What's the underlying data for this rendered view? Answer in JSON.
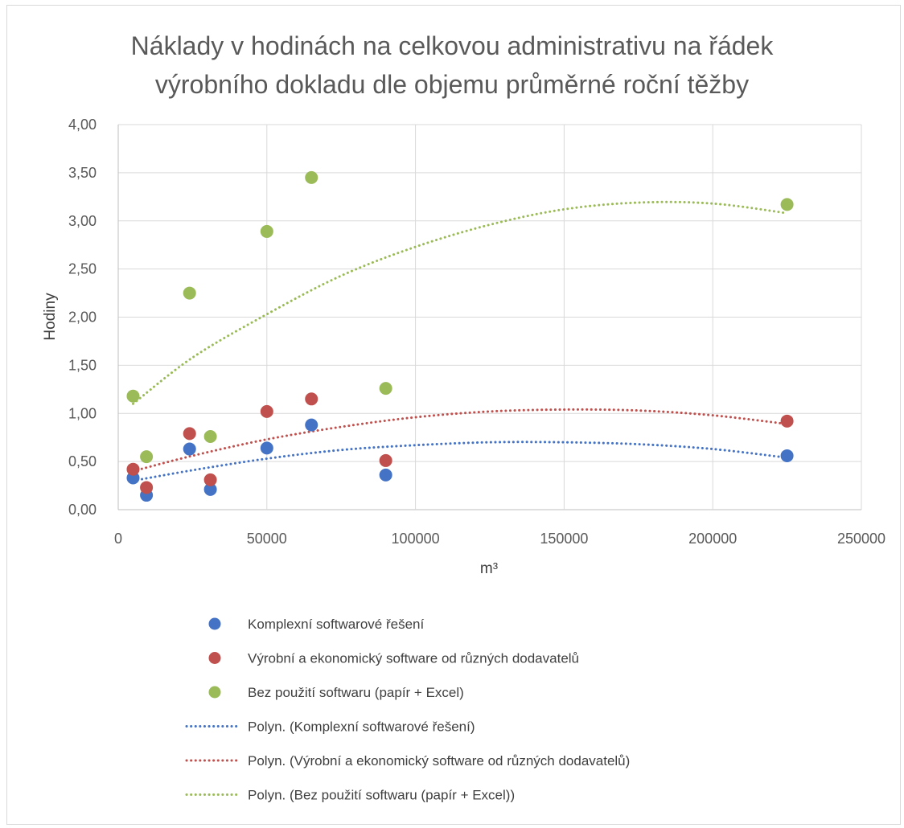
{
  "chart_data": {
    "type": "scatter",
    "title_lines": [
      "Náklady v hodinách na celkovou administrativu na řádek",
      "výrobního dokladu dle objemu průměrné roční těžby"
    ],
    "xlabel": "m³",
    "ylabel": "Hodiny",
    "xlim": [
      0,
      250000
    ],
    "ylim": [
      0,
      4
    ],
    "x_ticks": [
      "0",
      "50000",
      "100000",
      "150000",
      "200000",
      "250000"
    ],
    "y_ticks": [
      "0,00",
      "0,50",
      "1,00",
      "1,50",
      "2,00",
      "2,50",
      "3,00",
      "3,50",
      "4,00"
    ],
    "grid": true,
    "legend_position": "bottom",
    "series": [
      {
        "name": "Komplexní softwarové řešení",
        "color": "#4472c4",
        "points": [
          [
            5000,
            0.33
          ],
          [
            9500,
            0.15
          ],
          [
            24000,
            0.63
          ],
          [
            31000,
            0.21
          ],
          [
            50000,
            0.64
          ],
          [
            65000,
            0.88
          ],
          [
            90000,
            0.36
          ],
          [
            225000,
            0.56
          ]
        ],
        "trend_label": "Polyn. (Komplexní softwarové řešení)",
        "trend_points": [
          [
            5000,
            0.3
          ],
          [
            25000,
            0.41
          ],
          [
            50000,
            0.53
          ],
          [
            75000,
            0.62
          ],
          [
            100000,
            0.67
          ],
          [
            125000,
            0.7
          ],
          [
            150000,
            0.7
          ],
          [
            175000,
            0.68
          ],
          [
            200000,
            0.63
          ],
          [
            225000,
            0.54
          ]
        ]
      },
      {
        "name": "Výrobní a ekonomický software od různých dodavatelů",
        "color": "#c0504d",
        "points": [
          [
            5000,
            0.42
          ],
          [
            9500,
            0.23
          ],
          [
            24000,
            0.79
          ],
          [
            31000,
            0.31
          ],
          [
            50000,
            1.02
          ],
          [
            65000,
            1.15
          ],
          [
            90000,
            0.51
          ],
          [
            225000,
            0.92
          ]
        ],
        "trend_label": "Polyn. (Výrobní a ekonomický software od různých dodavatelů)",
        "trend_points": [
          [
            5000,
            0.4
          ],
          [
            25000,
            0.56
          ],
          [
            50000,
            0.73
          ],
          [
            75000,
            0.86
          ],
          [
            100000,
            0.96
          ],
          [
            125000,
            1.02
          ],
          [
            150000,
            1.04
          ],
          [
            175000,
            1.03
          ],
          [
            200000,
            0.98
          ],
          [
            225000,
            0.89
          ]
        ]
      },
      {
        "name": "Bez použití softwaru (papír + Excel)",
        "color": "#9bbb59",
        "points": [
          [
            5000,
            1.18
          ],
          [
            9500,
            0.55
          ],
          [
            24000,
            2.25
          ],
          [
            31000,
            0.76
          ],
          [
            50000,
            2.89
          ],
          [
            65000,
            3.45
          ],
          [
            90000,
            1.26
          ],
          [
            225000,
            3.17
          ]
        ],
        "trend_label": "Polyn. (Bez použití softwaru (papír + Excel))",
        "trend_points": [
          [
            5000,
            1.1
          ],
          [
            25000,
            1.58
          ],
          [
            50000,
            2.03
          ],
          [
            75000,
            2.43
          ],
          [
            100000,
            2.73
          ],
          [
            125000,
            2.96
          ],
          [
            150000,
            3.12
          ],
          [
            175000,
            3.19
          ],
          [
            200000,
            3.18
          ],
          [
            225000,
            3.08
          ]
        ]
      }
    ]
  }
}
